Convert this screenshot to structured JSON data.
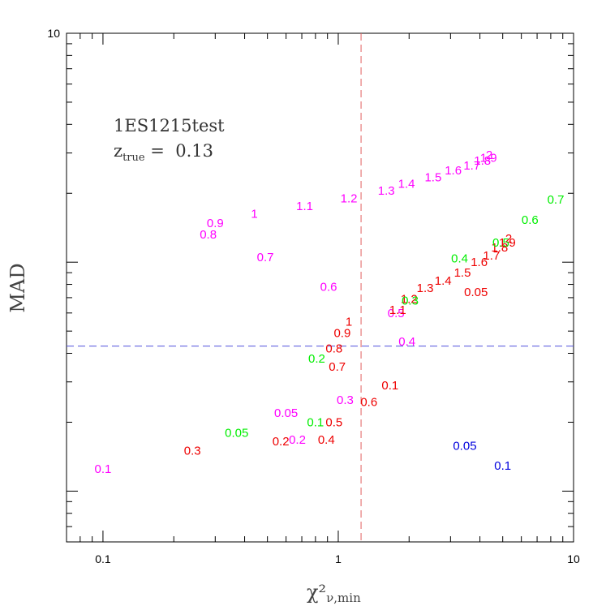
{
  "chart_data": {
    "type": "scatter",
    "title": "",
    "xlabel": "χ²",
    "xlabel_sub": "ν,min",
    "ylabel": "MAD",
    "x_scale": "log",
    "y_scale": "log",
    "xlim": [
      0.07,
      10
    ],
    "ylim": [
      0.06,
      10
    ],
    "x_ticks": [
      {
        "value": 0.1,
        "label": "0.1"
      },
      {
        "value": 1,
        "label": "1"
      },
      {
        "value": 10,
        "label": "10"
      }
    ],
    "y_ticks": [
      {
        "value": 10,
        "label": "10"
      }
    ],
    "grid": false,
    "reference_lines": [
      {
        "orientation": "vertical",
        "value": 1.25,
        "color": "#e06060"
      },
      {
        "orientation": "horizontal",
        "value": 0.43,
        "color": "#5050dd"
      }
    ],
    "annotation_lines": [
      {
        "text": "1ES1215test"
      },
      {
        "text": "z",
        "subscript": "true",
        "suffix": " =  0.13"
      }
    ],
    "series": [
      {
        "color": "#ff00ff",
        "points": [
          {
            "x": 0.1,
            "y": 0.125,
            "label": "0.1"
          },
          {
            "x": 0.67,
            "y": 0.168,
            "label": "0.2"
          },
          {
            "x": 0.6,
            "y": 0.22,
            "label": "0.05"
          },
          {
            "x": 1.07,
            "y": 0.25,
            "label": "0.3"
          },
          {
            "x": 1.96,
            "y": 0.45,
            "label": "0.4"
          },
          {
            "x": 1.76,
            "y": 0.6,
            "label": "0.5"
          },
          {
            "x": 0.91,
            "y": 0.78,
            "label": "0.6"
          },
          {
            "x": 0.49,
            "y": 1.05,
            "label": "0.7"
          },
          {
            "x": 0.28,
            "y": 1.32,
            "label": "0.8"
          },
          {
            "x": 0.3,
            "y": 1.48,
            "label": "0.9"
          },
          {
            "x": 0.44,
            "y": 1.63,
            "label": "1"
          },
          {
            "x": 0.72,
            "y": 1.76,
            "label": "1.1"
          },
          {
            "x": 1.11,
            "y": 1.9,
            "label": "1.2"
          },
          {
            "x": 1.6,
            "y": 2.05,
            "label": "1.3"
          },
          {
            "x": 1.95,
            "y": 2.2,
            "label": "1.4"
          },
          {
            "x": 2.53,
            "y": 2.35,
            "label": "1.5"
          },
          {
            "x": 3.08,
            "y": 2.52,
            "label": "1.6"
          },
          {
            "x": 3.7,
            "y": 2.65,
            "label": "1.7"
          },
          {
            "x": 4.1,
            "y": 2.78,
            "label": "1.8"
          },
          {
            "x": 4.35,
            "y": 2.86,
            "label": "1.9"
          },
          {
            "x": 4.38,
            "y": 2.94,
            "label": "2"
          }
        ]
      },
      {
        "color": "#ee0000",
        "points": [
          {
            "x": 0.24,
            "y": 0.15,
            "label": "0.3"
          },
          {
            "x": 0.57,
            "y": 0.165,
            "label": "0.2"
          },
          {
            "x": 0.89,
            "y": 0.168,
            "label": "0.4"
          },
          {
            "x": 0.96,
            "y": 0.2,
            "label": "0.5"
          },
          {
            "x": 1.35,
            "y": 0.245,
            "label": "0.6"
          },
          {
            "x": 0.99,
            "y": 0.35,
            "label": "0.7"
          },
          {
            "x": 0.96,
            "y": 0.42,
            "label": "0.8"
          },
          {
            "x": 1.04,
            "y": 0.49,
            "label": "0.9"
          },
          {
            "x": 1.11,
            "y": 0.55,
            "label": "1"
          },
          {
            "x": 1.79,
            "y": 0.62,
            "label": "1.1"
          },
          {
            "x": 2.0,
            "y": 0.69,
            "label": "1.2"
          },
          {
            "x": 2.34,
            "y": 0.77,
            "label": "1.3"
          },
          {
            "x": 2.79,
            "y": 0.83,
            "label": "1.4"
          },
          {
            "x": 3.37,
            "y": 0.9,
            "label": "1.5"
          },
          {
            "x": 3.97,
            "y": 1.0,
            "label": "1.6"
          },
          {
            "x": 4.48,
            "y": 1.07,
            "label": "1.7"
          },
          {
            "x": 4.85,
            "y": 1.16,
            "label": "1.8"
          },
          {
            "x": 5.23,
            "y": 1.22,
            "label": "1.9"
          },
          {
            "x": 5.3,
            "y": 1.27,
            "label": "2"
          },
          {
            "x": 1.66,
            "y": 0.29,
            "label": "0.1"
          },
          {
            "x": 3.85,
            "y": 0.74,
            "label": "0.05"
          }
        ]
      },
      {
        "color": "#00ee00",
        "points": [
          {
            "x": 0.37,
            "y": 0.18,
            "label": "0.05"
          },
          {
            "x": 0.8,
            "y": 0.2,
            "label": "0.1"
          },
          {
            "x": 0.81,
            "y": 0.38,
            "label": "0.2"
          },
          {
            "x": 2.02,
            "y": 0.68,
            "label": "0.3"
          },
          {
            "x": 3.28,
            "y": 1.04,
            "label": "0.4"
          },
          {
            "x": 4.91,
            "y": 1.22,
            "label": "0.5"
          },
          {
            "x": 6.53,
            "y": 1.53,
            "label": "0.6"
          },
          {
            "x": 8.4,
            "y": 1.88,
            "label": "0.7"
          }
        ]
      },
      {
        "color": "#0000dd",
        "points": [
          {
            "x": 3.45,
            "y": 0.158,
            "label": "0.05"
          },
          {
            "x": 5.0,
            "y": 0.129,
            "label": "0.1"
          }
        ]
      }
    ]
  }
}
